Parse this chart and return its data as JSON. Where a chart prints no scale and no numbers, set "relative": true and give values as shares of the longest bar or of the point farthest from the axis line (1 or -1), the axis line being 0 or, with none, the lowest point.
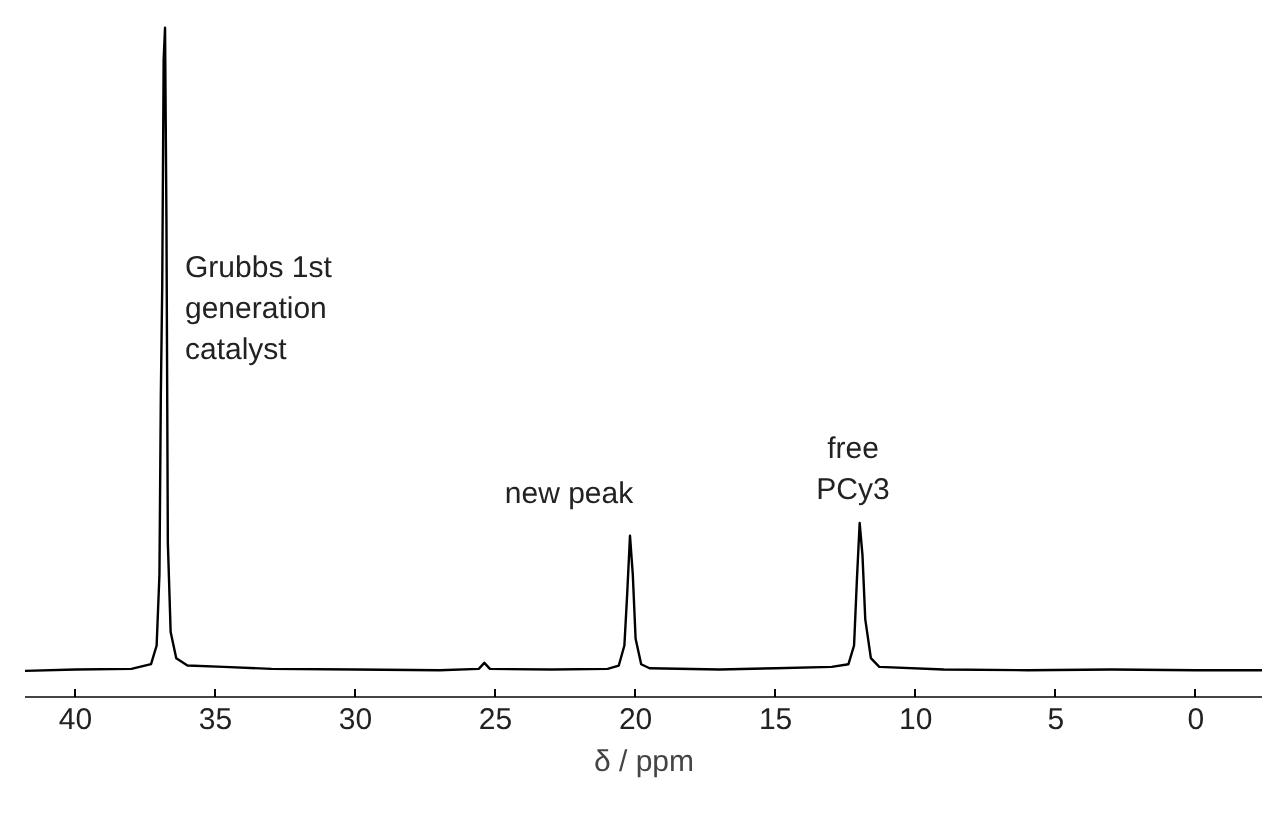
{
  "chart_data": {
    "type": "line",
    "relative": true,
    "xlabel": "δ / ppm",
    "x": [
      41.8,
      40,
      38,
      37.3,
      37.1,
      37.0,
      36.95,
      36.9,
      36.85,
      36.8,
      36.75,
      36.7,
      36.6,
      36.4,
      36,
      34.7,
      33,
      30,
      27,
      25.6,
      25.4,
      25.2,
      23,
      21,
      20.6,
      20.4,
      20.3,
      20.2,
      20.1,
      20.0,
      19.8,
      19.5,
      17,
      15,
      13,
      12.4,
      12.2,
      12.1,
      12.0,
      11.9,
      11.8,
      11.6,
      11.3,
      9,
      6,
      3,
      0,
      -2.4
    ],
    "series": [
      {
        "color": "#000000",
        "values": [
          0.039,
          0.041,
          0.042,
          0.049,
          0.077,
          0.183,
          0.452,
          0.616,
          0.952,
          1.0,
          0.712,
          0.231,
          0.097,
          0.058,
          0.047,
          0.045,
          0.042,
          0.041,
          0.04,
          0.042,
          0.051,
          0.042,
          0.041,
          0.042,
          0.047,
          0.077,
          0.154,
          0.241,
          0.183,
          0.087,
          0.049,
          0.043,
          0.041,
          0.043,
          0.045,
          0.049,
          0.077,
          0.174,
          0.26,
          0.212,
          0.116,
          0.058,
          0.045,
          0.041,
          0.04,
          0.041,
          0.04,
          0.04
        ]
      }
    ],
    "xlim": [
      41.8,
      -2.4
    ],
    "xticks": [
      40,
      35,
      30,
      25,
      20,
      15,
      10,
      5,
      0
    ],
    "marker": "none",
    "line_style": "solid",
    "annotations": [
      "Grubbs 1st\ngeneration\ncatalyst",
      "new peak",
      "free\nPCy3"
    ]
  }
}
